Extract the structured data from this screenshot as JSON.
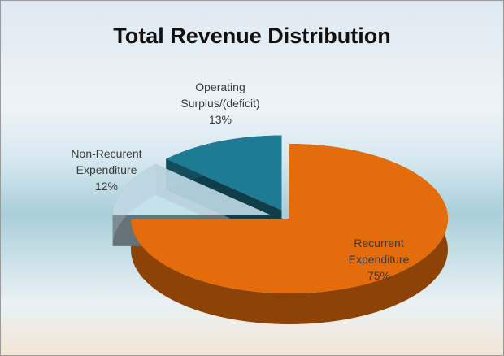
{
  "chart_data": {
    "type": "pie",
    "title": "Total Revenue Distribution",
    "categories": [
      "Recurrent Expenditure",
      "Non-Recurent Expenditure",
      "Operating Surplus/(deficit)"
    ],
    "values": [
      75,
      12,
      13
    ],
    "value_labels": [
      "75%",
      "12%",
      "13%"
    ],
    "colors": [
      "#e46c0a",
      "#c9e4ef",
      "#1f7a93"
    ],
    "exploded": [
      false,
      true,
      true
    ]
  }
}
